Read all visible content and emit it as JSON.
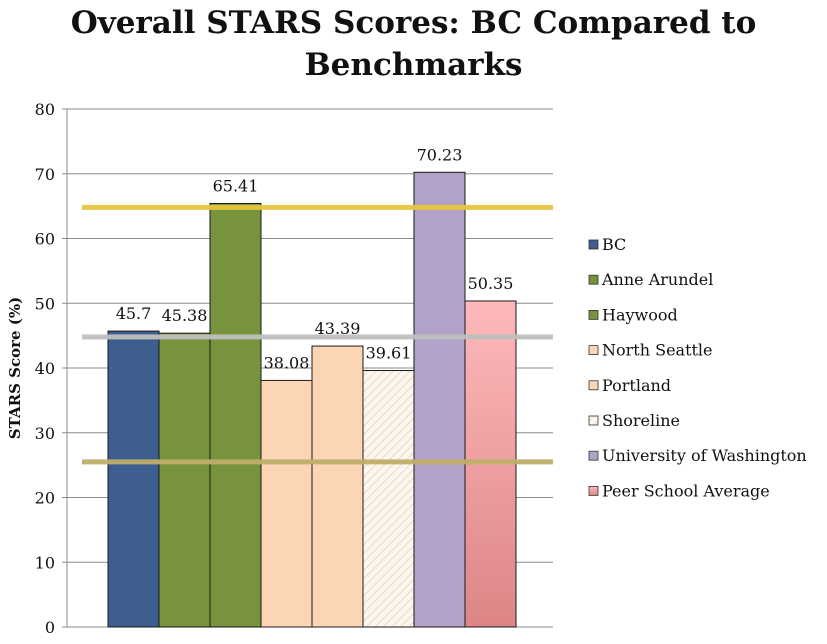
{
  "chart_data": {
    "type": "bar",
    "title_line1": "Overall STARS Scores: BC Compared to",
    "title_line2": "Benchmarks",
    "ylabel": "STARS Score (%)",
    "ylim": [
      0,
      80
    ],
    "yticks": [
      0,
      10,
      20,
      30,
      40,
      50,
      60,
      70,
      80
    ],
    "grid": true,
    "legend_position": "right",
    "series": [
      {
        "name": "BC",
        "value": 45.7,
        "label": "45.7",
        "color": "#3d5e8f"
      },
      {
        "name": "Anne Arundel",
        "value": 45.38,
        "label": "45.38",
        "color": "#77933c"
      },
      {
        "name": "Haywood",
        "value": 65.41,
        "label": "65.41",
        "color": "#77933c"
      },
      {
        "name": "North Seattle",
        "value": 38.08,
        "label": "38.08",
        "color": "#fcd5b5"
      },
      {
        "name": "Portland",
        "value": 43.39,
        "label": "43.39",
        "color": "#fcd5b5"
      },
      {
        "name": "Shoreline",
        "value": 39.61,
        "label": "39.61",
        "color": "#fdf6ee"
      },
      {
        "name": "University of Washington",
        "value": 70.23,
        "label": "70.23",
        "color": "#b3a2c7"
      },
      {
        "name": "Peer School Average",
        "value": 50.35,
        "label": "50.35",
        "color": "#f4a6a8"
      }
    ],
    "reference_lines": [
      {
        "value": 64.8,
        "color": "#e6c640"
      },
      {
        "value": 44.8,
        "color": "#bfbfbf"
      },
      {
        "value": 25.5,
        "color": "#bfae6a"
      }
    ]
  }
}
